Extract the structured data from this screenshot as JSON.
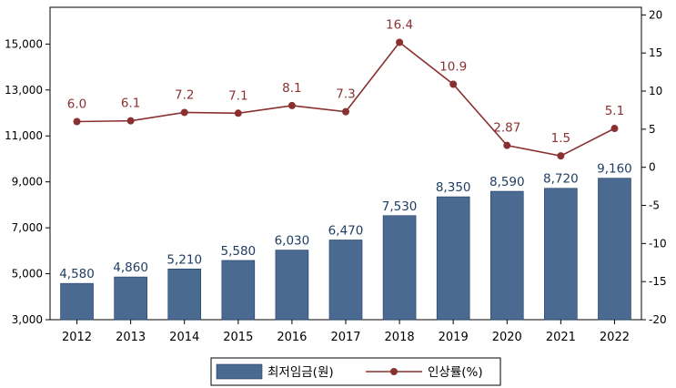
{
  "chart_data": {
    "type": "bar+line",
    "categories": [
      "2012",
      "2013",
      "2014",
      "2015",
      "2016",
      "2017",
      "2018",
      "2019",
      "2020",
      "2021",
      "2022"
    ],
    "series": [
      {
        "name": "최저임금(원)",
        "type": "bar",
        "axis": "left",
        "values": [
          4580,
          4860,
          5210,
          5580,
          6030,
          6470,
          7530,
          8350,
          8590,
          8720,
          9160
        ],
        "labels": [
          "4,580",
          "4,860",
          "5,210",
          "5,580",
          "6,030",
          "6,470",
          "7,530",
          "8,350",
          "8,590",
          "8,720",
          "9,160"
        ],
        "color": "#4a6a92"
      },
      {
        "name": "인상률(%)",
        "type": "line",
        "axis": "right",
        "values": [
          6.0,
          6.1,
          7.2,
          7.1,
          8.1,
          7.3,
          16.4,
          10.9,
          2.87,
          1.5,
          5.1
        ],
        "labels": [
          "6.0",
          "6.1",
          "7.2",
          "7.1",
          "8.1",
          "7.3",
          "16.4",
          "10.9",
          "2.87",
          "1.5",
          "5.1"
        ],
        "color": "#8a3030"
      }
    ],
    "left_axis": {
      "ylim": [
        3000,
        16600
      ],
      "ticks": [
        3000,
        5000,
        7000,
        9000,
        11000,
        13000,
        15000
      ],
      "tick_labels": [
        "3,000",
        "5,000",
        "7,000",
        "9,000",
        "11,000",
        "13,000",
        "15,000"
      ]
    },
    "right_axis": {
      "ylim": [
        -20,
        21
      ],
      "ticks": [
        -20,
        -15,
        -10,
        -5,
        0,
        5,
        10,
        15,
        20
      ],
      "tick_labels": [
        "-20",
        "-15",
        "-10",
        "-5",
        "0",
        "5",
        "10",
        "15",
        "20"
      ]
    },
    "title": "",
    "xlabel": "",
    "ylabel": "",
    "grid": false,
    "legend_position": "bottom"
  }
}
